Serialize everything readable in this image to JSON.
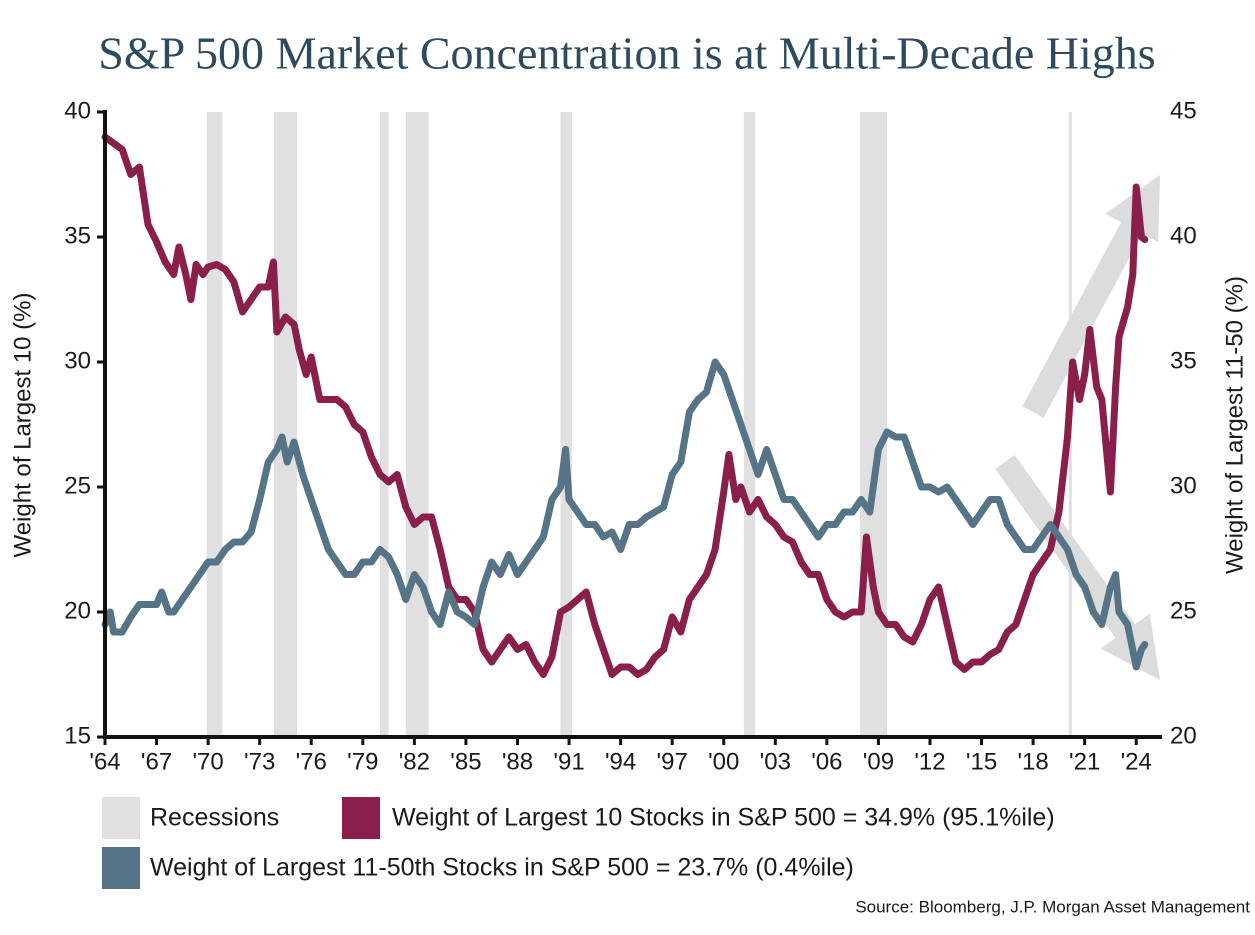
{
  "chart_data": {
    "type": "line",
    "title": "S&P 500 Market Concentration is at Multi-Decade Highs",
    "y_label": "Weight of Largest 10 (%)",
    "y2_label": "Weight of Largest 11-50 (%)",
    "source": "Source: Bloomberg, J.P. Morgan Asset Management",
    "xlim": [
      1964,
      2025.5
    ],
    "xticks": [
      {
        "value": 1964,
        "label": "'64"
      },
      {
        "value": 1967,
        "label": "'67"
      },
      {
        "value": 1970,
        "label": "'70"
      },
      {
        "value": 1973,
        "label": "'73"
      },
      {
        "value": 1976,
        "label": "'76"
      },
      {
        "value": 1979,
        "label": "'79"
      },
      {
        "value": 1982,
        "label": "'82"
      },
      {
        "value": 1985,
        "label": "'85"
      },
      {
        "value": 1988,
        "label": "'88"
      },
      {
        "value": 1991,
        "label": "'91"
      },
      {
        "value": 1994,
        "label": "'94"
      },
      {
        "value": 1997,
        "label": "'97"
      },
      {
        "value": 2000,
        "label": "'00"
      },
      {
        "value": 2003,
        "label": "'03"
      },
      {
        "value": 2006,
        "label": "'06"
      },
      {
        "value": 2009,
        "label": "'09"
      },
      {
        "value": 2012,
        "label": "'12"
      },
      {
        "value": 2015,
        "label": "'15"
      },
      {
        "value": 2018,
        "label": "'18"
      },
      {
        "value": 2021,
        "label": "'21"
      },
      {
        "value": 2024,
        "label": "'24"
      }
    ],
    "ylim": [
      15,
      40
    ],
    "yticks": [
      15,
      20,
      25,
      30,
      35,
      40
    ],
    "y2lim": [
      20,
      45
    ],
    "y2ticks": [
      20,
      25,
      30,
      35,
      40,
      45
    ],
    "recessions": {
      "name": "Recessions",
      "color": "#e0e0e0",
      "periods": [
        [
          1969.92,
          1970.83
        ],
        [
          1973.83,
          1975.17
        ],
        [
          1980.0,
          1980.5
        ],
        [
          1981.5,
          1982.83
        ],
        [
          1990.5,
          1991.17
        ],
        [
          2001.17,
          2001.83
        ],
        [
          2007.92,
          2009.5
        ],
        [
          2020.08,
          2020.25
        ]
      ]
    },
    "series": [
      {
        "name": "Weight of Largest 10 Stocks in S&P 500 = 34.9% (95.1%ile)",
        "color": "#8a1f4c",
        "x": [
          1964,
          1965,
          1965.5,
          1966,
          1966.5,
          1967,
          1967.5,
          1968,
          1968.3,
          1968.7,
          1969,
          1969.3,
          1969.7,
          1970,
          1970.5,
          1971,
          1971.5,
          1972,
          1972.5,
          1973,
          1973.5,
          1973.8,
          1974,
          1974.5,
          1975,
          1975.3,
          1975.7,
          1976,
          1976.5,
          1977,
          1977.5,
          1978,
          1978.5,
          1979,
          1979.5,
          1980,
          1980.5,
          1981,
          1981.5,
          1982,
          1982.5,
          1983,
          1983.5,
          1984,
          1984.5,
          1985,
          1985.5,
          1986,
          1986.5,
          1987,
          1987.5,
          1988,
          1988.5,
          1989,
          1989.5,
          1990,
          1990.5,
          1991,
          1991.5,
          1992,
          1992.5,
          1993,
          1993.5,
          1994,
          1994.5,
          1995,
          1995.5,
          1996,
          1996.5,
          1997,
          1997.5,
          1998,
          1998.5,
          1999,
          1999.5,
          2000,
          2000.3,
          2000.7,
          2001,
          2001.5,
          2002,
          2002.5,
          2003,
          2003.5,
          2004,
          2004.5,
          2005,
          2005.5,
          2006,
          2006.5,
          2007,
          2007.5,
          2008,
          2008.3,
          2008.7,
          2009,
          2009.5,
          2010,
          2010.5,
          2011,
          2011.5,
          2012,
          2012.5,
          2013,
          2013.5,
          2014,
          2014.5,
          2015,
          2015.5,
          2016,
          2016.5,
          2017,
          2017.5,
          2018,
          2018.5,
          2019,
          2019.5,
          2020,
          2020.3,
          2020.7,
          2021,
          2021.3,
          2021.7,
          2022,
          2022.5,
          2022.8,
          2023,
          2023.5,
          2023.8,
          2024,
          2024.3,
          2024.5
        ],
        "values": [
          39,
          38.5,
          37.5,
          37.8,
          35.5,
          34.8,
          34,
          33.5,
          34.6,
          33.5,
          32.5,
          33.9,
          33.5,
          33.8,
          33.9,
          33.7,
          33.2,
          32,
          32.5,
          33,
          33,
          34,
          31.2,
          31.8,
          31.5,
          30.5,
          29.5,
          30.2,
          28.5,
          28.5,
          28.5,
          28.2,
          27.5,
          27.2,
          26.2,
          25.5,
          25.2,
          25.5,
          24.2,
          23.5,
          23.8,
          23.8,
          22.5,
          21,
          20.5,
          20.5,
          20,
          18.5,
          18,
          18.5,
          19,
          18.5,
          18.7,
          18,
          17.5,
          18.2,
          20,
          20.2,
          20.5,
          20.8,
          19.5,
          18.5,
          17.5,
          17.8,
          17.8,
          17.5,
          17.7,
          18.2,
          18.5,
          19.8,
          19.2,
          20.5,
          21,
          21.5,
          22.5,
          24.8,
          26.3,
          24.5,
          25,
          24,
          24.5,
          23.8,
          23.5,
          23,
          22.8,
          22,
          21.5,
          21.5,
          20.5,
          20,
          19.8,
          20,
          20,
          23,
          21,
          20,
          19.5,
          19.5,
          19,
          18.8,
          19.5,
          20.5,
          21,
          19.5,
          18,
          17.7,
          18,
          18,
          18.3,
          18.5,
          19.2,
          19.5,
          20.5,
          21.5,
          22,
          22.5,
          24,
          27,
          30,
          28.5,
          29.5,
          31.3,
          29,
          28.5,
          24.8,
          29,
          31,
          32.2,
          33.5,
          37,
          35,
          34.9
        ]
      },
      {
        "name": "Weight of Largest 11-50th Stocks in S&P 500 = 23.7% (0.4%ile)",
        "color": "#567487",
        "axis": "y2",
        "x": [
          1964,
          1964.3,
          1964.5,
          1965,
          1965.5,
          1966,
          1967,
          1967.3,
          1967.7,
          1968,
          1968.5,
          1969,
          1969.5,
          1970,
          1970.5,
          1971,
          1971.5,
          1972,
          1972.5,
          1973,
          1973.5,
          1974,
          1974.3,
          1974.6,
          1975,
          1975.5,
          1976,
          1976.5,
          1977,
          1977.5,
          1978,
          1978.5,
          1979,
          1979.5,
          1980,
          1980.5,
          1981,
          1981.5,
          1982,
          1982.5,
          1983,
          1983.5,
          1984,
          1984.5,
          1985,
          1985.5,
          1986,
          1986.5,
          1987,
          1987.5,
          1988,
          1988.5,
          1989,
          1989.5,
          1990,
          1990.5,
          1990.8,
          1991,
          1991.5,
          1992,
          1992.5,
          1993,
          1993.5,
          1994,
          1994.5,
          1995,
          1995.5,
          1996,
          1996.5,
          1997,
          1997.5,
          1998,
          1998.5,
          1999,
          1999.5,
          2000,
          2000.5,
          2001,
          2001.5,
          2002,
          2002.5,
          2003,
          2003.5,
          2004,
          2004.5,
          2005,
          2005.5,
          2006,
          2006.5,
          2007,
          2007.5,
          2008,
          2008.5,
          2009,
          2009.5,
          2010,
          2010.5,
          2011,
          2011.5,
          2012,
          2012.5,
          2013,
          2013.5,
          2014,
          2014.5,
          2015,
          2015.5,
          2016,
          2016.5,
          2017,
          2017.5,
          2018,
          2018.5,
          2019,
          2019.5,
          2020,
          2020.5,
          2021,
          2021.5,
          2022,
          2022.5,
          2022.8,
          2023,
          2023.5,
          2024,
          2024.3,
          2024.5
        ],
        "values": [
          24.5,
          25,
          24.2,
          24.2,
          24.8,
          25.3,
          25.3,
          25.8,
          25,
          25,
          25.5,
          26,
          26.5,
          27,
          27,
          27.5,
          27.8,
          27.8,
          28.2,
          29.5,
          31,
          31.5,
          32,
          31,
          31.8,
          30.5,
          29.5,
          28.5,
          27.5,
          27,
          26.5,
          26.5,
          27,
          27,
          27.5,
          27.2,
          26.5,
          25.5,
          26.5,
          26,
          25,
          24.5,
          25.8,
          25,
          24.8,
          24.5,
          26,
          27,
          26.5,
          27.3,
          26.5,
          27,
          27.5,
          28,
          29.5,
          30,
          31.5,
          29.5,
          29,
          28.5,
          28.5,
          28,
          28.2,
          27.5,
          28.5,
          28.5,
          28.8,
          29,
          29.2,
          30.5,
          31,
          33,
          33.5,
          33.8,
          35,
          34.5,
          33.5,
          32.5,
          31.5,
          30.5,
          31.5,
          30.5,
          29.5,
          29.5,
          29,
          28.5,
          28,
          28.5,
          28.5,
          29,
          29,
          29.5,
          29,
          31.5,
          32.2,
          32,
          32,
          31,
          30,
          30,
          29.8,
          30,
          29.5,
          29,
          28.5,
          29,
          29.5,
          29.5,
          28.5,
          28,
          27.5,
          27.5,
          28,
          28.5,
          28,
          27.5,
          26.5,
          26,
          25,
          24.5,
          26,
          26.5,
          25,
          24.5,
          22.8,
          23.5,
          23.7
        ]
      }
    ]
  }
}
